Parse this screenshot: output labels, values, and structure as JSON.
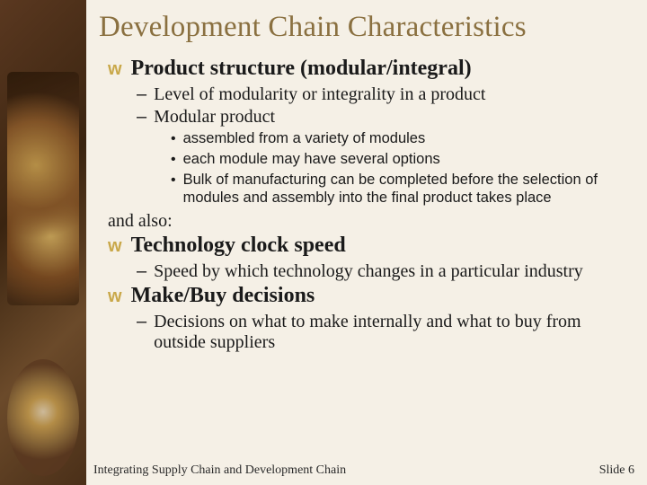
{
  "title": "Development Chain Characteristics",
  "items": [
    {
      "text": "Product structure (modular/integral)",
      "subs": [
        {
          "text": "Level of modularity or integrality in a product"
        },
        {
          "text": "Modular product",
          "dots": [
            "assembled from a variety of modules",
            "each module may have several options",
            "Bulk of manufacturing can be completed before the selection of modules and assembly into the final product takes place"
          ]
        }
      ]
    }
  ],
  "and_also": "and also:",
  "items2": [
    {
      "text": "Technology clock speed",
      "subs": [
        {
          "text": "Speed by which technology changes in a particular industry"
        }
      ]
    },
    {
      "text": "Make/Buy decisions",
      "subs": [
        {
          "text": "Decisions on what to make internally and what to buy from outside suppliers"
        }
      ]
    }
  ],
  "footer_left": "Integrating Supply Chain and Development Chain",
  "footer_right": "Slide 6",
  "colors": {
    "background": "#f5f0e6",
    "title": "#8a7040",
    "bullet": "#c9a84a",
    "text": "#1a1a1a"
  }
}
